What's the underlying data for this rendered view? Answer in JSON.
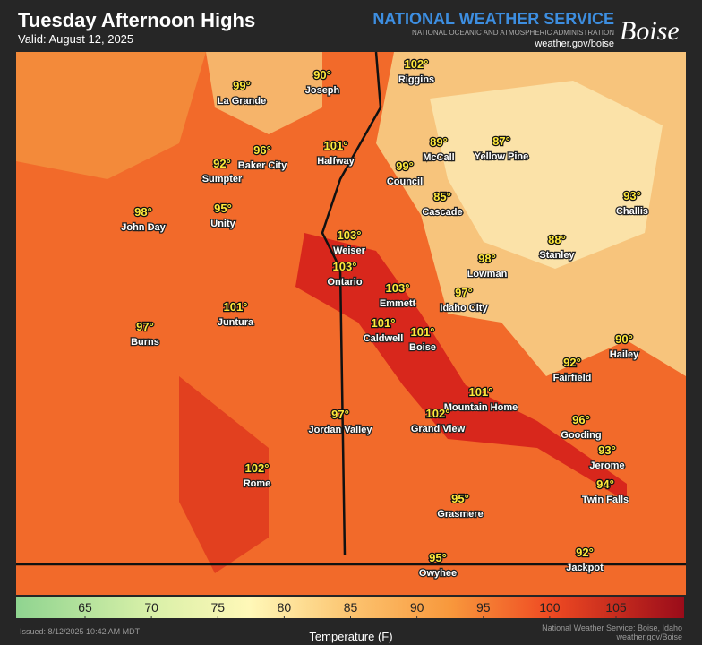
{
  "header": {
    "title": "Tuesday Afternoon Highs",
    "valid": "Valid: August 12, 2025",
    "agency": "NATIONAL WEATHER SERVICE",
    "agency_sub": "NATIONAL OCEANIC AND ATMOSPHERIC ADMINISTRATION",
    "website": "weather.gov/boise",
    "office": "Boise"
  },
  "cities": [
    {
      "name": "La Grande",
      "temp": "99°"
    },
    {
      "name": "Joseph",
      "temp": "90°"
    },
    {
      "name": "Riggins",
      "temp": "102°"
    },
    {
      "name": "Halfway",
      "temp": "101°"
    },
    {
      "name": "McCall",
      "temp": "89°"
    },
    {
      "name": "Yellow Pine",
      "temp": "87°"
    },
    {
      "name": "Baker City",
      "temp": "96°"
    },
    {
      "name": "Sumpter",
      "temp": "92°"
    },
    {
      "name": "Council",
      "temp": "99°"
    },
    {
      "name": "Cascade",
      "temp": "85°"
    },
    {
      "name": "Challis",
      "temp": "93°"
    },
    {
      "name": "John Day",
      "temp": "98°"
    },
    {
      "name": "Unity",
      "temp": "95°"
    },
    {
      "name": "Weiser",
      "temp": "103°"
    },
    {
      "name": "Stanley",
      "temp": "88°"
    },
    {
      "name": "Ontario",
      "temp": "103°"
    },
    {
      "name": "Lowman",
      "temp": "98°"
    },
    {
      "name": "Emmett",
      "temp": "103°"
    },
    {
      "name": "Idaho City",
      "temp": "97°"
    },
    {
      "name": "Juntura",
      "temp": "101°"
    },
    {
      "name": "Caldwell",
      "temp": "101°"
    },
    {
      "name": "Boise",
      "temp": "101°"
    },
    {
      "name": "Burns",
      "temp": "97°"
    },
    {
      "name": "Hailey",
      "temp": "90°"
    },
    {
      "name": "Fairfield",
      "temp": "92°"
    },
    {
      "name": "Mountain Home",
      "temp": "101°"
    },
    {
      "name": "Jordan Valley",
      "temp": "97°"
    },
    {
      "name": "Grand View",
      "temp": "102°"
    },
    {
      "name": "Gooding",
      "temp": "96°"
    },
    {
      "name": "Jerome",
      "temp": "93°"
    },
    {
      "name": "Rome",
      "temp": "102°"
    },
    {
      "name": "Twin Falls",
      "temp": "94°"
    },
    {
      "name": "Grasmere",
      "temp": "95°"
    },
    {
      "name": "Owyhee",
      "temp": "95°"
    },
    {
      "name": "Jackpot",
      "temp": "92°"
    }
  ],
  "scale": {
    "ticks": [
      65,
      70,
      75,
      80,
      85,
      90,
      95,
      100,
      105
    ],
    "label": "Temperature (F)"
  },
  "footer": {
    "issued": "Issued: 8/12/2025 10:42 AM MDT",
    "credit": "National Weather Service: Boise, Idaho",
    "credit_url": "weather.gov/Boise"
  }
}
